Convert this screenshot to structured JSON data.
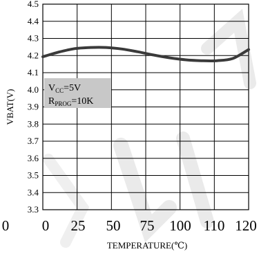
{
  "chart_data": {
    "type": "line",
    "title": "",
    "xlabel": "TEMPERATURE(℃)",
    "ylabel": "VBAT(V)",
    "ylim": [
      3.3,
      4.5
    ],
    "xlim": [
      -10,
      120
    ],
    "grid": true,
    "y_ticks": [
      "4.5",
      "4.4",
      "4.3",
      "4.2",
      "4.1",
      "4.0",
      "3.9",
      "3.8",
      "3.7",
      "3.6",
      "3.5",
      "3.4",
      "3.3"
    ],
    "x_ticks": [
      "0",
      "0",
      "25",
      "50",
      "75",
      "100",
      "110",
      "120"
    ],
    "x": [
      -10,
      0,
      10,
      20,
      30,
      40,
      50,
      60,
      70,
      80,
      90,
      100,
      110,
      120
    ],
    "y": [
      4.193,
      4.22,
      4.24,
      4.247,
      4.247,
      4.238,
      4.222,
      4.203,
      4.187,
      4.175,
      4.17,
      4.17,
      4.183,
      4.235
    ],
    "annotation": {
      "line1_main": "V",
      "line1_sub": "CC",
      "line1_rest": "=5V",
      "line2_main": "R",
      "line2_sub": "PROG",
      "line2_rest": "=10K"
    },
    "colors": {
      "line": "#3a3a3a",
      "grid": "#000000",
      "note_bg": "#c8c8c8",
      "watermark": "#cfcfcf"
    }
  }
}
